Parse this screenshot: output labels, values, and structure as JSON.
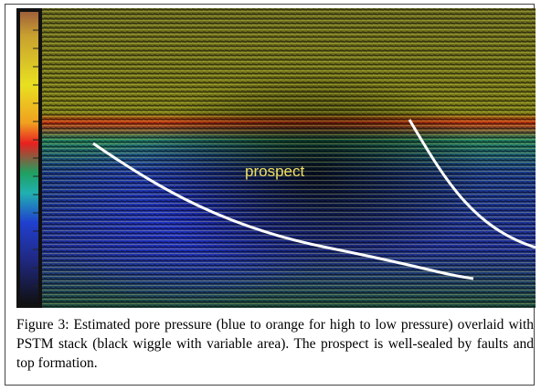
{
  "figure": {
    "annotation": "prospect",
    "caption": "Figure 3: Estimated pore pressure (blue to orange for high to low pressure) overlaid with PSTM stack (black wiggle with variable area). The prospect is well-sealed by faults and top formation."
  }
}
